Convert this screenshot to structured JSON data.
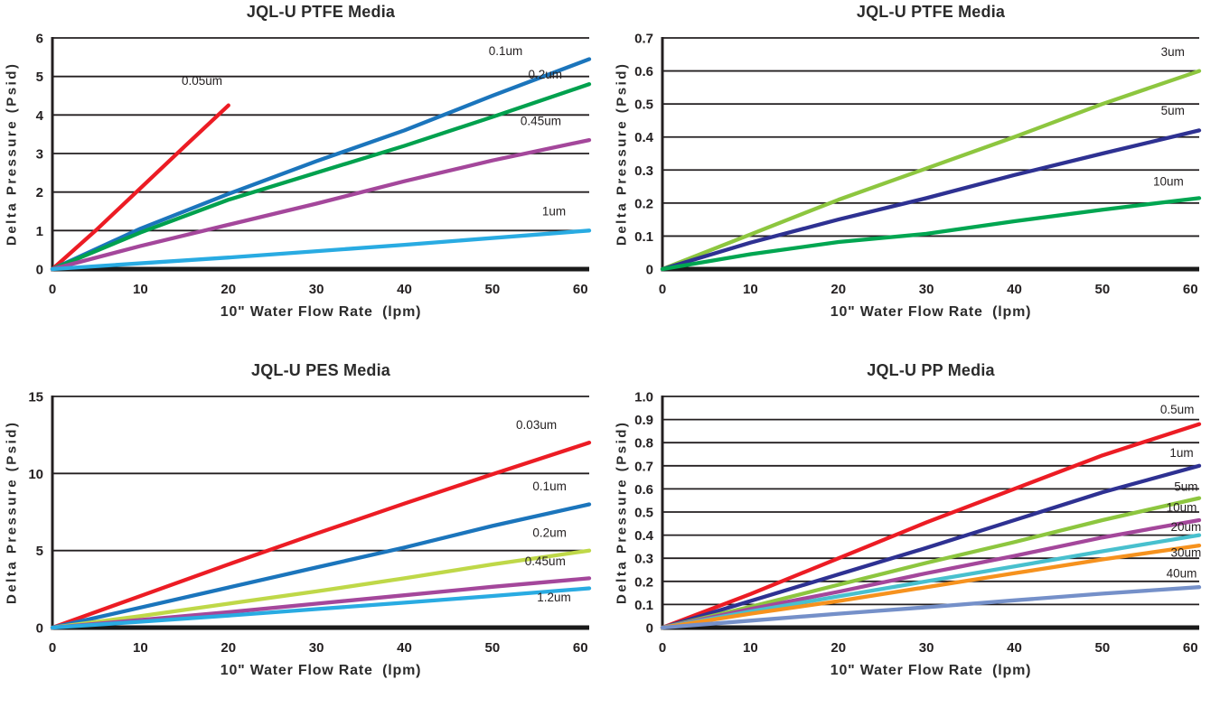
{
  "page": {
    "background": "#ffffff",
    "text_color": "#231F20"
  },
  "chart_data": [
    {
      "id": "ptfe-fine",
      "type": "line",
      "title": "JQL-U PTFE Media",
      "xlabel": "10\" Water Flow Rate  (lpm)",
      "ylabel": "Delta Pressure (Psid)",
      "xlim": [
        0,
        61
      ],
      "ylim": [
        0,
        6
      ],
      "grid": "horizontal",
      "legend_position": "inline-line-end-labels",
      "xticks": [
        {
          "value": 0,
          "label": "0"
        },
        {
          "value": 10,
          "label": "10"
        },
        {
          "value": 20,
          "label": "20"
        },
        {
          "value": 30,
          "label": "30"
        },
        {
          "value": 40,
          "label": "40"
        },
        {
          "value": 50,
          "label": "50"
        },
        {
          "value": 60,
          "label": "60"
        }
      ],
      "yticks": [
        {
          "value": 0,
          "label": "0"
        },
        {
          "value": 1,
          "label": "1"
        },
        {
          "value": 2,
          "label": "2"
        },
        {
          "value": 3,
          "label": "3"
        },
        {
          "value": 4,
          "label": "4"
        },
        {
          "value": 5,
          "label": "5"
        },
        {
          "value": 6,
          "label": "6"
        }
      ],
      "series": [
        {
          "name": "0.05um",
          "color": "#EC1C24",
          "label_at": [
            17,
            4.78
          ],
          "points": [
            [
              0,
              0
            ],
            [
              5,
              1.02
            ],
            [
              10,
              2.1
            ],
            [
              15,
              3.18
            ],
            [
              20,
              4.25
            ]
          ]
        },
        {
          "name": "0.1um",
          "color": "#1B75BC",
          "label_at": [
            51.5,
            5.55
          ],
          "points": [
            [
              0,
              0
            ],
            [
              10,
              1.05
            ],
            [
              20,
              1.95
            ],
            [
              30,
              2.8
            ],
            [
              40,
              3.6
            ],
            [
              50,
              4.5
            ],
            [
              61,
              5.45
            ]
          ]
        },
        {
          "name": "0.2um",
          "color": "#00A14E",
          "label_at": [
            56,
            4.95
          ],
          "points": [
            [
              0,
              0
            ],
            [
              10,
              0.95
            ],
            [
              20,
              1.8
            ],
            [
              30,
              2.5
            ],
            [
              40,
              3.2
            ],
            [
              50,
              3.95
            ],
            [
              61,
              4.8
            ]
          ]
        },
        {
          "name": "0.45um",
          "color": "#A4479B",
          "label_at": [
            55.5,
            3.74
          ],
          "points": [
            [
              0,
              0
            ],
            [
              10,
              0.6
            ],
            [
              20,
              1.15
            ],
            [
              30,
              1.7
            ],
            [
              40,
              2.28
            ],
            [
              50,
              2.82
            ],
            [
              61,
              3.35
            ]
          ]
        },
        {
          "name": "1um",
          "color": "#29ABE2",
          "label_at": [
            57,
            1.4
          ],
          "points": [
            [
              0,
              0
            ],
            [
              20,
              0.3
            ],
            [
              40,
              0.63
            ],
            [
              61,
              1.0
            ]
          ]
        }
      ]
    },
    {
      "id": "ptfe-coarse",
      "type": "line",
      "title": "JQL-U PTFE Media",
      "xlabel": "10\" Water Flow Rate  (lpm)",
      "ylabel": "Delta Pressure (Psid)",
      "xlim": [
        0,
        61
      ],
      "ylim": [
        0,
        0.7
      ],
      "grid": "horizontal",
      "legend_position": "inline-line-end-labels",
      "xticks": [
        {
          "value": 0,
          "label": "0"
        },
        {
          "value": 10,
          "label": "10"
        },
        {
          "value": 20,
          "label": "20"
        },
        {
          "value": 30,
          "label": "30"
        },
        {
          "value": 40,
          "label": "40"
        },
        {
          "value": 50,
          "label": "50"
        },
        {
          "value": 60,
          "label": "60"
        }
      ],
      "yticks": [
        {
          "value": 0,
          "label": "0"
        },
        {
          "value": 0.1,
          "label": "0.1"
        },
        {
          "value": 0.2,
          "label": "0.2"
        },
        {
          "value": 0.3,
          "label": "0.3"
        },
        {
          "value": 0.4,
          "label": "0.4"
        },
        {
          "value": 0.5,
          "label": "0.5"
        },
        {
          "value": 0.6,
          "label": "0.6"
        },
        {
          "value": 0.7,
          "label": "0.7"
        }
      ],
      "series": [
        {
          "name": "3um",
          "color": "#8DC63F",
          "label_at": [
            58,
            0.645
          ],
          "points": [
            [
              0,
              0
            ],
            [
              10,
              0.105
            ],
            [
              20,
              0.21
            ],
            [
              30,
              0.305
            ],
            [
              40,
              0.4
            ],
            [
              50,
              0.5
            ],
            [
              61,
              0.6
            ]
          ]
        },
        {
          "name": "5um",
          "color": "#2E3192",
          "label_at": [
            58,
            0.468
          ],
          "points": [
            [
              0,
              0
            ],
            [
              10,
              0.08
            ],
            [
              20,
              0.15
            ],
            [
              30,
              0.215
            ],
            [
              40,
              0.285
            ],
            [
              50,
              0.35
            ],
            [
              61,
              0.42
            ]
          ]
        },
        {
          "name": "10um",
          "color": "#00A651",
          "label_at": [
            57.5,
            0.253
          ],
          "points": [
            [
              0,
              0
            ],
            [
              10,
              0.045
            ],
            [
              20,
              0.082
            ],
            [
              30,
              0.107
            ],
            [
              40,
              0.145
            ],
            [
              50,
              0.18
            ],
            [
              61,
              0.215
            ]
          ]
        }
      ]
    },
    {
      "id": "pes",
      "type": "line",
      "title": "JQL-U PES Media",
      "xlabel": "10\" Water Flow Rate  (lpm)",
      "ylabel": "Delta Pressure (Psid)",
      "xlim": [
        0,
        61
      ],
      "ylim": [
        0,
        15
      ],
      "grid": "horizontal",
      "legend_position": "inline-line-end-labels",
      "xticks": [
        {
          "value": 0,
          "label": "0"
        },
        {
          "value": 10,
          "label": "10"
        },
        {
          "value": 20,
          "label": "20"
        },
        {
          "value": 30,
          "label": "30"
        },
        {
          "value": 40,
          "label": "40"
        },
        {
          "value": 50,
          "label": "50"
        },
        {
          "value": 60,
          "label": "60"
        }
      ],
      "yticks": [
        {
          "value": 0,
          "label": "0"
        },
        {
          "value": 5,
          "label": "5"
        },
        {
          "value": 10,
          "label": "10"
        },
        {
          "value": 15,
          "label": "15"
        }
      ],
      "series": [
        {
          "name": "0.03um",
          "color": "#EC1C24",
          "label_at": [
            55,
            12.9
          ],
          "points": [
            [
              0,
              0
            ],
            [
              10,
              2.05
            ],
            [
              20,
              4.1
            ],
            [
              30,
              6.1
            ],
            [
              40,
              8.05
            ],
            [
              50,
              9.95
            ],
            [
              61,
              12.0
            ]
          ]
        },
        {
          "name": "0.1um",
          "color": "#1B75BC",
          "label_at": [
            56.5,
            8.9
          ],
          "points": [
            [
              0,
              0
            ],
            [
              10,
              1.3
            ],
            [
              20,
              2.6
            ],
            [
              30,
              3.9
            ],
            [
              40,
              5.2
            ],
            [
              50,
              6.6
            ],
            [
              61,
              8.0
            ]
          ]
        },
        {
          "name": "0.2um",
          "color": "#BFD848",
          "label_at": [
            56.5,
            5.9
          ],
          "points": [
            [
              0,
              0
            ],
            [
              10,
              0.75
            ],
            [
              20,
              1.55
            ],
            [
              30,
              2.35
            ],
            [
              40,
              3.2
            ],
            [
              50,
              4.1
            ],
            [
              61,
              5.0
            ]
          ]
        },
        {
          "name": "0.45um",
          "color": "#A4479B",
          "label_at": [
            56,
            4.05
          ],
          "points": [
            [
              0,
              0
            ],
            [
              10,
              0.5
            ],
            [
              20,
              1.0
            ],
            [
              30,
              1.55
            ],
            [
              40,
              2.1
            ],
            [
              50,
              2.65
            ],
            [
              61,
              3.2
            ]
          ]
        },
        {
          "name": "1.2um",
          "color": "#29ABE2",
          "label_at": [
            57,
            1.7
          ],
          "points": [
            [
              0,
              0
            ],
            [
              10,
              0.38
            ],
            [
              20,
              0.78
            ],
            [
              30,
              1.2
            ],
            [
              40,
              1.62
            ],
            [
              50,
              2.05
            ],
            [
              61,
              2.55
            ]
          ]
        }
      ]
    },
    {
      "id": "pp",
      "type": "line",
      "title": "JQL-U PP Media",
      "xlabel": "10\" Water Flow Rate  (lpm)",
      "ylabel": "Delta Pressure (Psid)",
      "xlim": [
        0,
        61
      ],
      "ylim": [
        0,
        1.0
      ],
      "grid": "horizontal",
      "legend_position": "inline-line-end-labels",
      "xticks": [
        {
          "value": 0,
          "label": "0"
        },
        {
          "value": 10,
          "label": "10"
        },
        {
          "value": 20,
          "label": "20"
        },
        {
          "value": 30,
          "label": "30"
        },
        {
          "value": 40,
          "label": "40"
        },
        {
          "value": 50,
          "label": "50"
        },
        {
          "value": 60,
          "label": "60"
        }
      ],
      "yticks": [
        {
          "value": 0,
          "label": "0"
        },
        {
          "value": 0.1,
          "label": "0.1"
        },
        {
          "value": 0.2,
          "label": "0.2"
        },
        {
          "value": 0.3,
          "label": "0.3"
        },
        {
          "value": 0.4,
          "label": "0.4"
        },
        {
          "value": 0.5,
          "label": "0.5"
        },
        {
          "value": 0.6,
          "label": "0.6"
        },
        {
          "value": 0.7,
          "label": "0.7"
        },
        {
          "value": 0.8,
          "label": "0.8"
        },
        {
          "value": 0.9,
          "label": "0.9"
        },
        {
          "value": 1.0,
          "label": "1.0"
        }
      ],
      "series": [
        {
          "name": "0.5um",
          "color": "#EC1C24",
          "label_at": [
            58.5,
            0.925
          ],
          "points": [
            [
              0,
              0
            ],
            [
              10,
              0.145
            ],
            [
              20,
              0.3
            ],
            [
              30,
              0.455
            ],
            [
              40,
              0.6
            ],
            [
              50,
              0.745
            ],
            [
              61,
              0.88
            ]
          ]
        },
        {
          "name": "1um",
          "color": "#2E3192",
          "label_at": [
            59,
            0.738
          ],
          "points": [
            [
              0,
              0
            ],
            [
              10,
              0.115
            ],
            [
              20,
              0.23
            ],
            [
              30,
              0.345
            ],
            [
              40,
              0.465
            ],
            [
              50,
              0.585
            ],
            [
              61,
              0.7
            ]
          ]
        },
        {
          "name": "5um",
          "color": "#8DC63F",
          "label_at": [
            59.5,
            0.592
          ],
          "points": [
            [
              0,
              0
            ],
            [
              10,
              0.09
            ],
            [
              20,
              0.185
            ],
            [
              30,
              0.28
            ],
            [
              40,
              0.37
            ],
            [
              50,
              0.465
            ],
            [
              61,
              0.56
            ]
          ]
        },
        {
          "name": "10um",
          "color": "#A4479B",
          "label_at": [
            59,
            0.502
          ],
          "points": [
            [
              0,
              0
            ],
            [
              10,
              0.08
            ],
            [
              20,
              0.155
            ],
            [
              30,
              0.235
            ],
            [
              40,
              0.31
            ],
            [
              50,
              0.39
            ],
            [
              61,
              0.465
            ]
          ]
        },
        {
          "name": "20um",
          "color": "#48C0CE",
          "label_at": [
            59.5,
            0.418
          ],
          "points": [
            [
              0,
              0
            ],
            [
              10,
              0.07
            ],
            [
              20,
              0.135
            ],
            [
              30,
              0.2
            ],
            [
              40,
              0.265
            ],
            [
              50,
              0.33
            ],
            [
              61,
              0.4
            ]
          ]
        },
        {
          "name": "30um",
          "color": "#F6921E",
          "label_at": [
            59.5,
            0.306
          ],
          "points": [
            [
              0,
              0
            ],
            [
              10,
              0.06
            ],
            [
              20,
              0.115
            ],
            [
              30,
              0.175
            ],
            [
              40,
              0.235
            ],
            [
              50,
              0.295
            ],
            [
              61,
              0.355
            ]
          ]
        },
        {
          "name": "40um",
          "color": "#7590C9",
          "label_at": [
            59,
            0.216
          ],
          "points": [
            [
              0,
              0
            ],
            [
              10,
              0.03
            ],
            [
              20,
              0.06
            ],
            [
              30,
              0.088
            ],
            [
              40,
              0.118
            ],
            [
              50,
              0.147
            ],
            [
              61,
              0.175
            ]
          ]
        }
      ]
    }
  ]
}
